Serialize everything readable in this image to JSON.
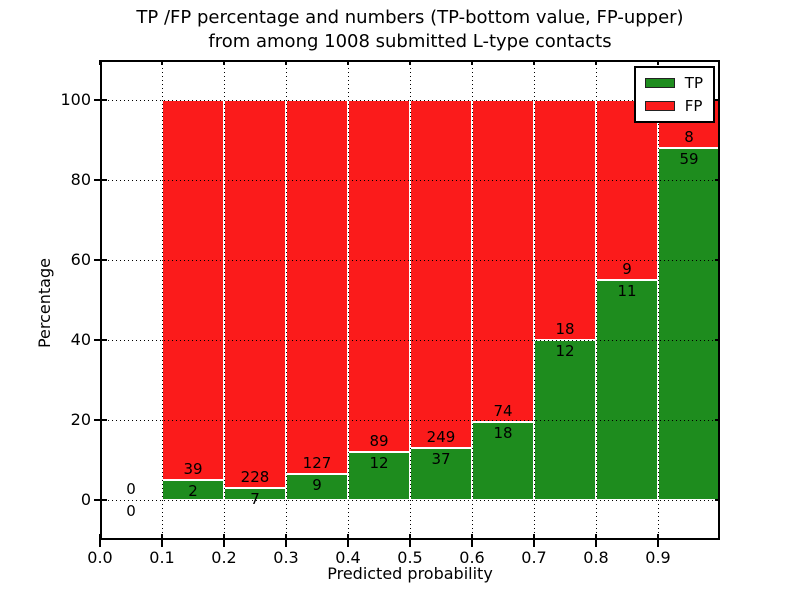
{
  "chart_data": {
    "type": "bar",
    "stacked": true,
    "title_line1": "TP /FP percentage and numbers (TP-bottom value, FP-upper)",
    "title_line2": "from among 1008 submitted L-type contacts",
    "xlabel": "Predicted probability",
    "ylabel": "Percentage",
    "xlim": [
      0.0,
      1.0
    ],
    "ylim": [
      -10,
      110
    ],
    "grid": true,
    "x_ticks": [
      0.0,
      0.1,
      0.2,
      0.3,
      0.4,
      0.5,
      0.6,
      0.7,
      0.8,
      0.9
    ],
    "x_tick_labels": [
      "0.0",
      "0.1",
      "0.2",
      "0.3",
      "0.4",
      "0.5",
      "0.6",
      "0.7",
      "0.8",
      "0.9"
    ],
    "y_ticks": [
      0,
      20,
      40,
      60,
      80,
      100
    ],
    "y_tick_labels": [
      "0",
      "20",
      "40",
      "60",
      "80",
      "100"
    ],
    "colors": {
      "tp": "#1e8c1e",
      "fp": "#fb1b1b"
    },
    "legend": {
      "position": "upper right",
      "entries": [
        {
          "name": "TP",
          "color": "#1e8c1e"
        },
        {
          "name": "FP",
          "color": "#fb1b1b"
        }
      ]
    },
    "bins": [
      {
        "x_start": 0.0,
        "x_end": 0.1,
        "tp_count": 0,
        "fp_count": 0,
        "tp_pct": 0,
        "fp_pct": 0,
        "bar": false
      },
      {
        "x_start": 0.1,
        "x_end": 0.2,
        "tp_count": 2,
        "fp_count": 39,
        "tp_pct": 4.88,
        "fp_pct": 95.12,
        "bar": true
      },
      {
        "x_start": 0.2,
        "x_end": 0.3,
        "tp_count": 7,
        "fp_count": 228,
        "tp_pct": 2.98,
        "fp_pct": 97.02,
        "bar": true
      },
      {
        "x_start": 0.3,
        "x_end": 0.4,
        "tp_count": 9,
        "fp_count": 127,
        "tp_pct": 6.62,
        "fp_pct": 93.38,
        "bar": true
      },
      {
        "x_start": 0.4,
        "x_end": 0.5,
        "tp_count": 12,
        "fp_count": 89,
        "tp_pct": 11.88,
        "fp_pct": 88.12,
        "bar": true
      },
      {
        "x_start": 0.5,
        "x_end": 0.6,
        "tp_count": 37,
        "fp_count": 249,
        "tp_pct": 12.94,
        "fp_pct": 87.06,
        "bar": true
      },
      {
        "x_start": 0.6,
        "x_end": 0.7,
        "tp_count": 18,
        "fp_count": 74,
        "tp_pct": 19.57,
        "fp_pct": 80.43,
        "bar": true
      },
      {
        "x_start": 0.7,
        "x_end": 0.8,
        "tp_count": 12,
        "fp_count": 18,
        "tp_pct": 40.0,
        "fp_pct": 60.0,
        "bar": true
      },
      {
        "x_start": 0.8,
        "x_end": 0.9,
        "tp_count": 11,
        "fp_count": 9,
        "tp_pct": 55.0,
        "fp_pct": 45.0,
        "bar": true
      },
      {
        "x_start": 0.9,
        "x_end": 1.0,
        "tp_count": 59,
        "fp_count": 8,
        "tp_pct": 88.06,
        "fp_pct": 11.94,
        "bar": true
      }
    ]
  }
}
